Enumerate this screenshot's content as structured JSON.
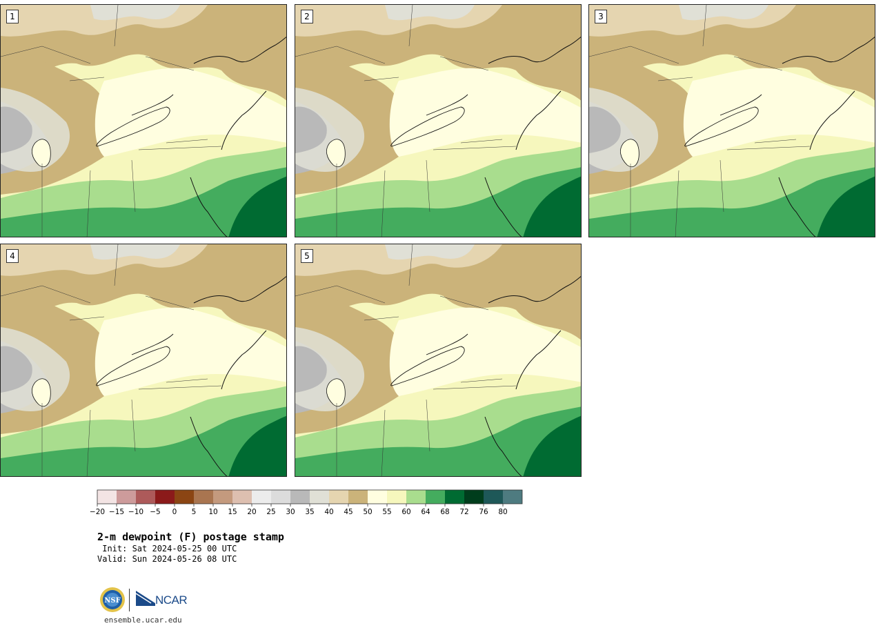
{
  "panels": [
    {
      "label": "1"
    },
    {
      "label": "2"
    },
    {
      "label": "3"
    },
    {
      "label": "4"
    },
    {
      "label": "5"
    }
  ],
  "colorbar": {
    "colors": [
      "#f3e4e4",
      "#cd9b9b",
      "#ad5a5a",
      "#8b1a1a",
      "#8b4513",
      "#a97550",
      "#c49a7e",
      "#ddbfb0",
      "#ececec",
      "#dcdcdc",
      "#b9b9b9",
      "#e0e0d6",
      "#e5d5b0",
      "#cbb37a",
      "#fffee0",
      "#f6f7bd",
      "#a9dd8e",
      "#44ac5e",
      "#006b32",
      "#003d1c",
      "#1e5858",
      "#4e7b80"
    ],
    "ticks": [
      "−20",
      "−15",
      "−10",
      "−5",
      "0",
      "5",
      "10",
      "15",
      "20",
      "25",
      "30",
      "35",
      "40",
      "45",
      "50",
      "55",
      "60",
      "64",
      "68",
      "72",
      "76",
      "80"
    ]
  },
  "title": {
    "main": "2-m dewpoint (F) postage stamp",
    "init": " Init: Sat 2024-05-25 00 UTC",
    "valid": "Valid: Sun 2024-05-26 08 UTC"
  },
  "logos": {
    "ncar": "NCAR",
    "nsf": "NSF"
  },
  "footer": {
    "url": "ensemble.ucar.edu"
  }
}
